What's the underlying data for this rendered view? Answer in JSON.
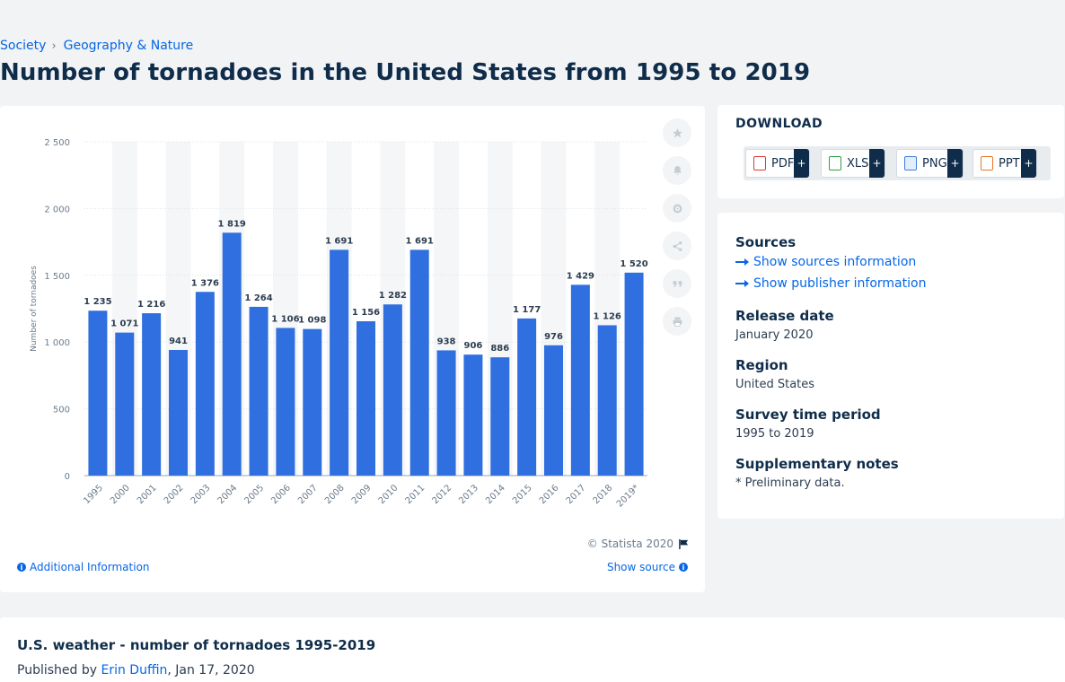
{
  "breadcrumb": {
    "items": [
      "Society",
      "Geography & Nature"
    ]
  },
  "page_title": "Number of tornadoes in the United States from 1995 to 2019",
  "toolbar": {
    "icons": [
      "star-icon",
      "bell-icon",
      "gear-icon",
      "share-icon",
      "quote-icon",
      "print-icon"
    ]
  },
  "chart_footer": {
    "copyright": "© Statista 2020",
    "additional_info": "Additional Information",
    "show_source": "Show source"
  },
  "download": {
    "title": "DOWNLOAD",
    "buttons": [
      {
        "label": "PDF",
        "color": "#d83b3b"
      },
      {
        "label": "XLS",
        "color": "#2f9e44"
      },
      {
        "label": "PNG",
        "color": "#3d7fd9"
      },
      {
        "label": "PPT",
        "color": "#e8762c"
      }
    ],
    "plus": "+"
  },
  "meta": {
    "sources_label": "Sources",
    "show_sources": "Show sources information",
    "show_publisher": "Show publisher information",
    "release_label": "Release date",
    "release_value": "January 2020",
    "region_label": "Region",
    "region_value": "United States",
    "survey_label": "Survey time period",
    "survey_value": "1995 to 2019",
    "notes_label": "Supplementary notes",
    "notes_value": "* Preliminary data."
  },
  "related": {
    "title": "U.S. weather - number of tornadoes 1995-2019",
    "published_prefix": "Published by ",
    "author": "Erin Duffin",
    "date": ", Jan 17, 2020"
  },
  "chart_data": {
    "type": "bar",
    "ylabel": "Number of tornadoes",
    "xlabel": "",
    "ylim": [
      0,
      2500
    ],
    "yticks": [
      0,
      500,
      1000,
      1500,
      2000,
      2500
    ],
    "ytick_labels": [
      "0",
      "500",
      "1 000",
      "1 500",
      "2 000",
      "2 500"
    ],
    "categories": [
      "1995",
      "2000",
      "2001",
      "2002",
      "2003",
      "2004",
      "2005",
      "2006",
      "2007",
      "2008",
      "2009",
      "2010",
      "2011",
      "2012",
      "2013",
      "2014",
      "2015",
      "2016",
      "2017",
      "2018",
      "2019*"
    ],
    "values": [
      1235,
      1071,
      1216,
      941,
      1376,
      1819,
      1264,
      1106,
      1098,
      1691,
      1156,
      1282,
      1691,
      938,
      906,
      886,
      1177,
      976,
      1429,
      1126,
      1520
    ],
    "value_labels": [
      "1 235",
      "1 071",
      "1 216",
      "941",
      "1 376",
      "1 819",
      "1 264",
      "1 106",
      "1 098",
      "1 691",
      "1 156",
      "1 282",
      "1 691",
      "938",
      "906",
      "886",
      "1 177",
      "976",
      "1 429",
      "1 126",
      "1 520"
    ],
    "bar_color": "#2f6fe0",
    "grid": true,
    "legend": "none"
  }
}
